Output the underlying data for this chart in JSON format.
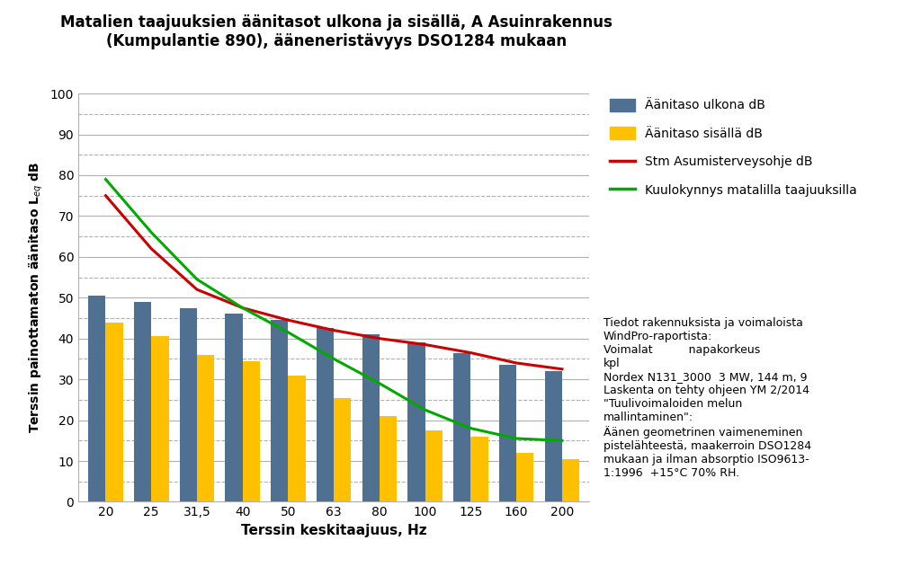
{
  "title": "Matalien taajuuksien äänitasot ulkona ja sisällä, A Asuinrakennus\n(Kumpulantie 890), ääneneristävyys DSO1284 mukaan",
  "xlabel": "Terssin keskitaajuus, Hz",
  "ylabel": "Terssin painottamaton äänitaso L_eq dB",
  "categories": [
    "20",
    "25",
    "31,5",
    "40",
    "50",
    "63",
    "80",
    "100",
    "125",
    "160",
    "200"
  ],
  "bar_outdoor": [
    50.5,
    49.0,
    47.5,
    46.0,
    44.5,
    42.5,
    41.0,
    39.0,
    36.5,
    33.5,
    32.0
  ],
  "bar_indoor": [
    44.0,
    40.5,
    36.0,
    34.5,
    31.0,
    25.5,
    21.0,
    17.5,
    16.0,
    12.0,
    10.5
  ],
  "line_stm": [
    75.0,
    62.0,
    52.0,
    47.5,
    44.5,
    42.0,
    40.0,
    38.5,
    36.5,
    34.0,
    32.5
  ],
  "line_hearing": [
    79.0,
    66.0,
    54.5,
    47.5,
    41.5,
    35.0,
    29.0,
    22.5,
    18.0,
    15.5,
    15.0
  ],
  "color_outdoor": "#4f7090",
  "color_indoor": "#ffc000",
  "color_stm": "#cc0000",
  "color_hearing": "#00aa00",
  "ylim": [
    0,
    100
  ],
  "yticks_major": [
    0,
    10,
    20,
    30,
    40,
    50,
    60,
    70,
    80,
    90,
    100
  ],
  "yticks_minor": [
    5,
    15,
    25,
    35,
    45,
    55,
    65,
    75,
    85,
    95
  ],
  "legend_outdoor": "Äänitaso ulkona dB",
  "legend_indoor": "Äänitaso sisällä dB",
  "legend_stm": "Stm Asumisterveysohje dB",
  "legend_hearing": "Kuulokynnys matalilla taajuuksilla",
  "annotation_lines": [
    "Tiedot rakennuksista ja voimaloista",
    "WindPro-raportista:",
    "Voimalat          napakorkeus",
    "kpl",
    "Nordex N131_3000  3 MW, 144 m, 9",
    "Laskenta on tehty ohjeen YM 2/2014",
    "\"Tuulivoimaloiden melun",
    "mallintaminen\":",
    "Äänen geometrinen vaimeneminen",
    "pistelähteestä, maakerroin DSO1284",
    "mukaan ja ilman absorptio ISO9613-",
    "1:1996  +15°C 70% RH."
  ],
  "background_color": "#ffffff",
  "grid_major_color": "#b0b0b0",
  "grid_minor_color": "#b0b0b0"
}
